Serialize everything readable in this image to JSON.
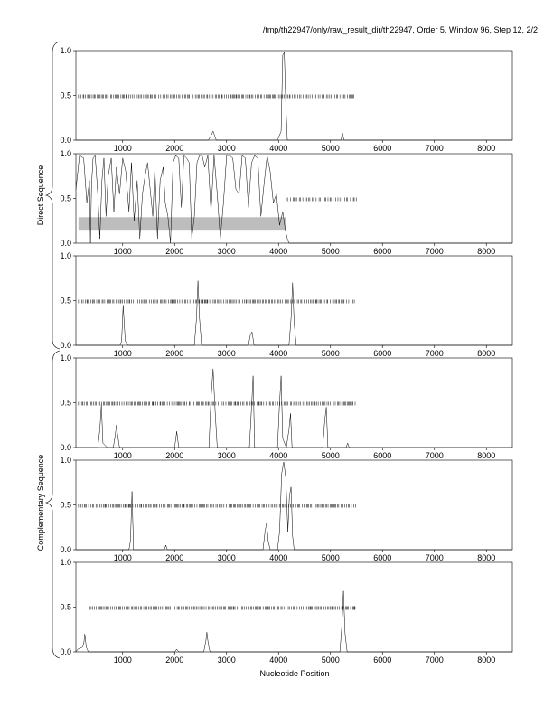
{
  "header": "/tmp/th22947/only/raw_result_dir/th22947, Order 5, Window 96, Step 12, 2/2",
  "xlabel": "Nucleotide Position",
  "group_labels": [
    "Direct Sequence",
    "Complementary Sequence"
  ],
  "colors": {
    "trace": "#000000",
    "band": "#bdbdbd",
    "background": "#ffffff"
  },
  "chart_data": [
    {
      "type": "line",
      "group": "Direct Sequence",
      "xlim": [
        100,
        8500
      ],
      "ylim": [
        0,
        1
      ],
      "xticks": [
        1000,
        2000,
        3000,
        4000,
        5000,
        6000,
        7000,
        8000
      ],
      "yticks": [
        0,
        0.5,
        1
      ],
      "ytick_labels": [
        "0.0",
        "0.5",
        "1.0"
      ],
      "series": [
        {
          "x": [
            100,
            2650,
            2700,
            2740,
            2800,
            3980,
            4050,
            4080,
            4110,
            4140,
            4170,
            4250,
            5200,
            5230,
            5260,
            8500
          ],
          "y": [
            0,
            0,
            0.05,
            0.1,
            0,
            0,
            0.1,
            0.95,
            0.98,
            0.4,
            0,
            0,
            0,
            0.08,
            0,
            0
          ]
        }
      ],
      "rug": {
        "y": 0.49,
        "x_start": 150,
        "x_end": 5450,
        "mean_step": 30
      }
    },
    {
      "type": "line",
      "group": "Direct Sequence",
      "xlim": [
        100,
        8500
      ],
      "ylim": [
        0,
        1
      ],
      "xticks": [
        1000,
        2000,
        3000,
        4000,
        5000,
        6000,
        7000,
        8000
      ],
      "yticks": [
        0,
        0.5,
        1
      ],
      "ytick_labels": [
        "0.0",
        "0.5",
        "1.0"
      ],
      "band": [
        0.15,
        0.29,
        150,
        4150
      ],
      "series": [
        {
          "x": [
            100,
            170,
            250,
            310,
            360,
            380,
            400,
            430,
            470,
            520,
            560,
            600,
            640,
            680,
            720,
            780,
            830,
            880,
            940,
            1000,
            1060,
            1120,
            1170,
            1220,
            1280,
            1330,
            1380,
            1430,
            1480,
            1530,
            1580,
            1620,
            1670,
            1720,
            1780,
            1820,
            1870,
            1920,
            1970,
            2020,
            2080,
            2130,
            2180,
            2230,
            2280,
            2330,
            2380,
            2430,
            2480,
            2530,
            2580,
            2640,
            2700,
            2760,
            2820,
            2880,
            2940,
            3000,
            3060,
            3120,
            3180,
            3240,
            3300,
            3360,
            3420,
            3480,
            3540,
            3600,
            3660,
            3720,
            3780,
            3840,
            3900,
            3960,
            4020,
            4080,
            4130,
            4170,
            4200,
            8500
          ],
          "y": [
            0.6,
            0.98,
            0.95,
            0.45,
            0.7,
            0,
            0.65,
            0.95,
            0.98,
            0.55,
            0.05,
            0.7,
            0.95,
            0.3,
            0.75,
            0.95,
            0.35,
            0.85,
            0.55,
            0.95,
            0.8,
            0.35,
            0.9,
            0.25,
            0.7,
            0.05,
            0.55,
            0.75,
            0.9,
            0.6,
            0.3,
            0.85,
            0.05,
            0.7,
            0.85,
            0.45,
            0.3,
            0,
            0.9,
            0.98,
            0.95,
            0.4,
            0.98,
            0.95,
            0.9,
            0.05,
            0.3,
            0.9,
            0.98,
            0.98,
            0.85,
            0.98,
            0.35,
            0.98,
            0.55,
            0.05,
            0.45,
            0.98,
            0.98,
            0.95,
            0.6,
            0.55,
            0.98,
            0.95,
            0.4,
            0.9,
            0.98,
            0.95,
            0.3,
            0.65,
            0.98,
            0.8,
            0.45,
            0.55,
            0.2,
            0.35,
            0.15,
            0.05,
            0,
            0
          ]
        }
      ],
      "rug": {
        "y": 0.49,
        "x_start": 4150,
        "x_end": 5500,
        "mean_step": 40
      }
    },
    {
      "type": "line",
      "group": "Direct Sequence",
      "xlim": [
        100,
        8500
      ],
      "ylim": [
        0,
        1
      ],
      "xticks": [
        1000,
        2000,
        3000,
        4000,
        5000,
        6000,
        7000,
        8000
      ],
      "yticks": [
        0,
        0.5,
        1
      ],
      "ytick_labels": [
        "0.0",
        "0.5",
        "1.0"
      ],
      "series": [
        {
          "x": [
            100,
            950,
            980,
            1010,
            1050,
            1100,
            2380,
            2420,
            2450,
            2480,
            2520,
            3420,
            3460,
            3490,
            3530,
            4200,
            4240,
            4270,
            4300,
            4340,
            8500
          ],
          "y": [
            0,
            0,
            0.05,
            0.45,
            0.05,
            0,
            0,
            0.3,
            0.72,
            0.3,
            0,
            0,
            0.12,
            0.15,
            0,
            0,
            0.3,
            0.7,
            0.25,
            0,
            0
          ]
        }
      ],
      "rug": {
        "y": 0.49,
        "x_start": 150,
        "x_end": 5500,
        "mean_step": 30
      }
    },
    {
      "type": "line",
      "group": "Complementary Sequence",
      "xlim": [
        100,
        8500
      ],
      "ylim": [
        0,
        1
      ],
      "xticks": [
        1000,
        2000,
        3000,
        4000,
        5000,
        6000,
        7000,
        8000
      ],
      "yticks": [
        0,
        0.5,
        1
      ],
      "ytick_labels": [
        "0.0",
        "0.5",
        "1.0"
      ],
      "series": [
        {
          "x": [
            100,
            520,
            560,
            590,
            620,
            700,
            820,
            860,
            880,
            900,
            940,
            2000,
            2040,
            2080,
            2660,
            2700,
            2740,
            2780,
            2820,
            3440,
            3480,
            3510,
            3540,
            3980,
            4020,
            4050,
            4080,
            4150,
            4200,
            4230,
            4260,
            4850,
            4890,
            4920,
            4950,
            5300,
            5330,
            5360,
            8500
          ],
          "y": [
            0,
            0,
            0.2,
            0.48,
            0.05,
            0,
            0,
            0.15,
            0.25,
            0.15,
            0,
            0,
            0.18,
            0,
            0,
            0.55,
            0.88,
            0.4,
            0,
            0,
            0.45,
            0.8,
            0,
            0,
            0.5,
            0.8,
            0.1,
            0,
            0.2,
            0.38,
            0,
            0,
            0.3,
            0.45,
            0,
            0,
            0.05,
            0,
            0
          ]
        }
      ],
      "rug": {
        "y": 0.49,
        "x_start": 150,
        "x_end": 5500,
        "mean_step": 30
      }
    },
    {
      "type": "line",
      "group": "Complementary Sequence",
      "xlim": [
        100,
        8500
      ],
      "ylim": [
        0,
        1
      ],
      "xticks": [
        1000,
        2000,
        3000,
        4000,
        5000,
        6000,
        7000,
        8000
      ],
      "yticks": [
        0,
        0.5,
        1
      ],
      "ytick_labels": [
        "0.0",
        "0.5",
        "1.0"
      ],
      "series": [
        {
          "x": [
            100,
            1120,
            1150,
            1180,
            1210,
            1800,
            1830,
            1860,
            3700,
            3740,
            3770,
            3800,
            3840,
            3980,
            4020,
            4060,
            4100,
            4140,
            4180,
            4210,
            4240,
            4270,
            4300,
            8500
          ],
          "y": [
            0,
            0,
            0.1,
            0.65,
            0,
            0,
            0.05,
            0,
            0,
            0.2,
            0.3,
            0.1,
            0,
            0,
            0.2,
            0.85,
            0.98,
            0.8,
            0.2,
            0.6,
            0.7,
            0.15,
            0,
            0
          ]
        }
      ],
      "rug": {
        "y": 0.49,
        "x_start": 150,
        "x_end": 5500,
        "mean_step": 30
      }
    },
    {
      "type": "line",
      "group": "Complementary Sequence",
      "xlim": [
        100,
        8500
      ],
      "ylim": [
        0,
        1
      ],
      "xticks": [
        1000,
        2000,
        3000,
        4000,
        5000,
        6000,
        7000,
        8000
      ],
      "yticks": [
        0,
        0.5,
        1
      ],
      "ytick_labels": [
        "0.0",
        "0.5",
        "1.0"
      ],
      "series": [
        {
          "x": [
            100,
            140,
            180,
            220,
            250,
            270,
            300,
            340,
            2000,
            2040,
            2080,
            2560,
            2600,
            2620,
            2650,
            2680,
            5180,
            5220,
            5250,
            5280,
            5320,
            8500
          ],
          "y": [
            0,
            0.03,
            0.04,
            0.05,
            0.08,
            0.2,
            0.05,
            0,
            0,
            0.03,
            0,
            0,
            0.12,
            0.22,
            0.08,
            0,
            0,
            0.3,
            0.68,
            0.2,
            0,
            0
          ]
        }
      ],
      "rug": {
        "y": 0.49,
        "x_start": 350,
        "x_end": 5500,
        "mean_step": 30
      }
    }
  ]
}
